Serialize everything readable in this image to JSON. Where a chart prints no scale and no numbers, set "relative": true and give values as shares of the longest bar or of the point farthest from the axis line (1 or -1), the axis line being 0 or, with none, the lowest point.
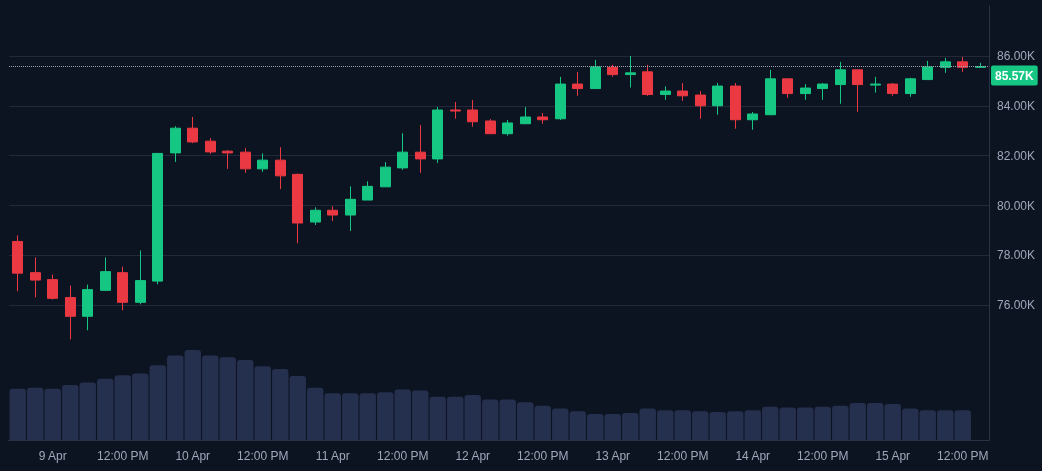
{
  "chart_data": [
    {
      "type": "candlestick",
      "categories": [
        null,
        null,
        null,
        null,
        null,
        null,
        null,
        null,
        null,
        null,
        null,
        null,
        null,
        null,
        null,
        null,
        null,
        null,
        null,
        null,
        null,
        null,
        null,
        null,
        null,
        null,
        null,
        null,
        null,
        null,
        null,
        null,
        null,
        null,
        null,
        null,
        null,
        null,
        null,
        null,
        null,
        null,
        null,
        null,
        null,
        null,
        null,
        null,
        null,
        null,
        null,
        null,
        null,
        null,
        null,
        null
      ],
      "ohlc": [
        [
          78.56,
          78.8,
          76.56,
          77.29
        ],
        [
          77.31,
          77.92,
          76.32,
          77.01
        ],
        [
          77.03,
          77.23,
          76.23,
          76.28
        ],
        [
          76.31,
          76.79,
          74.63,
          75.56
        ],
        [
          75.56,
          76.83,
          75.0,
          76.63
        ],
        [
          76.6,
          77.92,
          76.6,
          77.35
        ],
        [
          77.31,
          77.55,
          75.8,
          76.12
        ],
        [
          76.12,
          78.2,
          76.04,
          76.99
        ],
        [
          76.97,
          82.09,
          76.84,
          82.09
        ],
        [
          82.11,
          83.18,
          81.75,
          83.1
        ],
        [
          83.1,
          83.55,
          82.5,
          82.55
        ],
        [
          82.58,
          82.7,
          82.07,
          82.15
        ],
        [
          82.18,
          82.22,
          81.47,
          82.11
        ],
        [
          82.14,
          82.3,
          81.31,
          81.47
        ],
        [
          81.47,
          82.09,
          81.35,
          81.82
        ],
        [
          81.82,
          82.34,
          80.66,
          81.19
        ],
        [
          81.25,
          81.28,
          78.49,
          79.3
        ],
        [
          79.34,
          79.93,
          79.22,
          79.81
        ],
        [
          79.81,
          79.97,
          79.38,
          79.62
        ],
        [
          79.62,
          80.77,
          78.98,
          80.25
        ],
        [
          80.22,
          80.97,
          80.22,
          80.77
        ],
        [
          80.75,
          81.74,
          80.75,
          81.54
        ],
        [
          81.51,
          82.9,
          81.43,
          82.14
        ],
        [
          82.14,
          83.23,
          81.31,
          81.87
        ],
        [
          81.87,
          83.95,
          81.71,
          83.83
        ],
        [
          83.83,
          84.15,
          83.48,
          83.79
        ],
        [
          83.83,
          84.23,
          83.16,
          83.36
        ],
        [
          83.39,
          83.47,
          82.88,
          82.88
        ],
        [
          82.88,
          83.43,
          82.8,
          83.31
        ],
        [
          83.28,
          83.95,
          83.28,
          83.55
        ],
        [
          83.55,
          83.71,
          83.28,
          83.44
        ],
        [
          83.48,
          85.16,
          83.43,
          84.87
        ],
        [
          84.87,
          85.36,
          84.4,
          84.69
        ],
        [
          84.69,
          85.84,
          84.69,
          85.56
        ],
        [
          85.54,
          85.64,
          85.17,
          85.25
        ],
        [
          85.25,
          86.0,
          84.73,
          85.32
        ],
        [
          85.36,
          85.64,
          84.4,
          84.45
        ],
        [
          84.45,
          84.78,
          84.24,
          84.59
        ],
        [
          84.59,
          84.91,
          84.2,
          84.4
        ],
        [
          84.43,
          84.59,
          83.48,
          84.0
        ],
        [
          84.0,
          84.91,
          83.64,
          84.79
        ],
        [
          84.79,
          84.91,
          83.08,
          83.44
        ],
        [
          83.44,
          83.75,
          83.04,
          83.67
        ],
        [
          83.64,
          85.44,
          83.64,
          85.08
        ],
        [
          85.08,
          85.08,
          84.32,
          84.49
        ],
        [
          84.49,
          84.87,
          84.24,
          84.71
        ],
        [
          84.69,
          84.91,
          84.24,
          84.87
        ],
        [
          84.85,
          85.76,
          84.08,
          85.44
        ],
        [
          85.44,
          85.44,
          83.76,
          84.85
        ],
        [
          84.83,
          85.16,
          84.53,
          84.87
        ],
        [
          84.87,
          84.91,
          84.4,
          84.49
        ],
        [
          84.49,
          85.12,
          84.36,
          85.08
        ],
        [
          85.05,
          85.8,
          85.05,
          85.56
        ],
        [
          85.54,
          85.92,
          85.32,
          85.76
        ],
        [
          85.76,
          85.96,
          85.36,
          85.54
        ],
        [
          85.54,
          85.72,
          85.53,
          85.57
        ]
      ],
      "colors": [
        "#ea3943",
        "#ea3943",
        "#ea3943",
        "#ea3943",
        "#16c784",
        "#16c784",
        "#ea3943",
        "#16c784",
        "#16c784",
        "#16c784",
        "#ea3943",
        "#ea3943",
        "#ea3943",
        "#ea3943",
        "#16c784",
        "#ea3943",
        "#ea3943",
        "#16c784",
        "#ea3943",
        "#16c784",
        "#16c784",
        "#16c784",
        "#16c784",
        "#ea3943",
        "#16c784",
        "#ea3943",
        "#ea3943",
        "#ea3943",
        "#16c784",
        "#16c784",
        "#ea3943",
        "#16c784",
        "#ea3943",
        "#16c784",
        "#ea3943",
        "#16c784",
        "#ea3943",
        "#16c784",
        "#ea3943",
        "#ea3943",
        "#16c784",
        "#ea3943",
        "#16c784",
        "#16c784",
        "#ea3943",
        "#16c784",
        "#16c784",
        "#16c784",
        "#ea3943",
        "#16c784",
        "#ea3943",
        "#16c784",
        "#16c784",
        "#16c784",
        "#ea3943",
        "#16c784"
      ],
      "ylim": [
        70.6,
        88
      ],
      "yticks": [
        {
          "value": 76,
          "label": "76.00K"
        },
        {
          "value": 78,
          "label": "78.00K"
        },
        {
          "value": 80,
          "label": "80.00K"
        },
        {
          "value": 82,
          "label": "82.00K"
        },
        {
          "value": 84,
          "label": "84.00K"
        },
        {
          "value": 86,
          "label": "86.00K"
        }
      ],
      "grid": "y",
      "tick_labels": "y",
      "ref_lines": [
        {
          "axis": "y",
          "value": 85.57,
          "label": "85.57K",
          "color": "#9aa0b0",
          "line_style": "dotted"
        }
      ]
    },
    {
      "type": "bar",
      "relative": true,
      "color": "#252f4e",
      "tick_labels": "x",
      "categories": [
        null,
        null,
        "9 Apr",
        null,
        null,
        null,
        "12:00 PM",
        null,
        null,
        null,
        "10 Apr",
        null,
        null,
        null,
        "12:00 PM",
        null,
        null,
        null,
        "11 Apr",
        null,
        null,
        null,
        "12:00 PM",
        null,
        null,
        null,
        "12 Apr",
        null,
        null,
        null,
        "12:00 PM",
        null,
        null,
        null,
        "13 Apr",
        null,
        null,
        null,
        "12:00 PM",
        null,
        null,
        null,
        "14 Apr",
        null,
        null,
        null,
        "12:00 PM",
        null,
        null,
        null,
        "15 Apr",
        null,
        null,
        null,
        "12:00 PM",
        null
      ],
      "values": [
        0.57,
        0.58,
        0.57,
        0.61,
        0.64,
        0.68,
        0.72,
        0.74,
        0.83,
        0.94,
        1,
        0.94,
        0.92,
        0.89,
        0.82,
        0.79,
        0.71,
        0.58,
        0.52,
        0.52,
        0.52,
        0.53,
        0.56,
        0.55,
        0.48,
        0.48,
        0.5,
        0.45,
        0.45,
        0.42,
        0.38,
        0.35,
        0.32,
        0.29,
        0.29,
        0.3,
        0.35,
        0.33,
        0.33,
        0.32,
        0.31,
        0.32,
        0.33,
        0.37,
        0.36,
        0.36,
        0.37,
        0.38,
        0.41,
        0.41,
        0.4,
        0.35,
        0.33,
        0.33,
        0.33,
        null
      ]
    }
  ]
}
